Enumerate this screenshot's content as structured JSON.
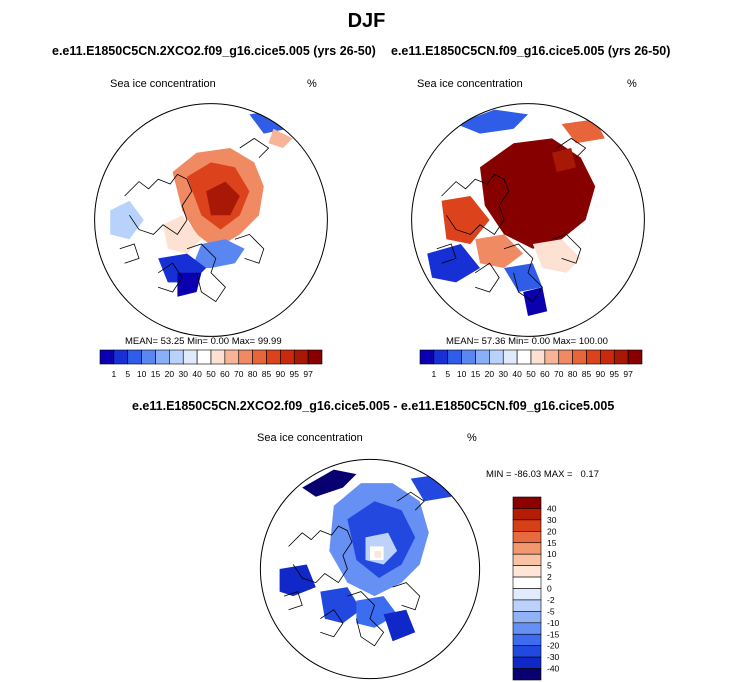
{
  "season": "DJF",
  "colors": {
    "abs_scale": [
      "#0a00b0",
      "#1630d6",
      "#2f5de8",
      "#5a86f2",
      "#8aaef7",
      "#b9d2fb",
      "#dfeafd",
      "#ffffff",
      "#fde2d3",
      "#f8b497",
      "#f08a62",
      "#e8643b",
      "#dc421c",
      "#c82a0d",
      "#a81806",
      "#860000"
    ],
    "diff_scale": [
      "#080070",
      "#1028c8",
      "#2248e0",
      "#3c6cf0",
      "#6690f4",
      "#92b2f8",
      "#bcd2fb",
      "#e0ebfd",
      "#ffffff",
      "#fde6d8",
      "#f9c2a2",
      "#f39770",
      "#ea6a40",
      "#d83f16",
      "#b41c05",
      "#8c0000"
    ],
    "land_line": "#000000",
    "ocean": "#ffffff"
  },
  "chart_data": [
    {
      "type": "heatmap",
      "projection": "north-polar-stereographic",
      "title": "e.e11.E1850C5CN.2XCO2.f09_g16.cice5.005 (yrs 26-50)",
      "variable": "Sea ice concentration",
      "units": "%",
      "stats": {
        "mean": "53.25",
        "min": "0.00",
        "max": "99.99"
      },
      "mean_label": "MEAN=",
      "min_label": "Min=",
      "max_label": "Max=",
      "colorbar_orientation": "horizontal",
      "levels": [
        "1",
        "5",
        "10",
        "15",
        "20",
        "30",
        "40",
        "50",
        "60",
        "70",
        "80",
        "85",
        "90",
        "95",
        "97"
      ]
    },
    {
      "type": "heatmap",
      "projection": "north-polar-stereographic",
      "title": "e.e11.E1850C5CN.f09_g16.cice5.005 (yrs 26-50)",
      "variable": "Sea ice concentration",
      "units": "%",
      "stats": {
        "mean": "57.36",
        "min": "0.00",
        "max": "100.00"
      },
      "mean_label": "MEAN=",
      "min_label": "Min=",
      "max_label": "Max=",
      "colorbar_orientation": "horizontal",
      "levels": [
        "1",
        "5",
        "10",
        "15",
        "20",
        "30",
        "40",
        "50",
        "60",
        "70",
        "80",
        "85",
        "90",
        "95",
        "97"
      ]
    },
    {
      "type": "heatmap",
      "projection": "north-polar-stereographic",
      "title": "e.e11.E1850C5CN.2XCO2.f09_g16.cice5.005 - e.e11.E1850C5CN.f09_g16.cice5.005",
      "variable": "Sea ice concentration",
      "units": "%",
      "stats_text": "MIN = -86.03 MAX =   0.17",
      "colorbar_orientation": "vertical",
      "levels": [
        "40",
        "30",
        "20",
        "15",
        "10",
        "5",
        "2",
        "0",
        "-2",
        "-5",
        "-10",
        "-15",
        "-20",
        "-30",
        "-40"
      ]
    }
  ]
}
